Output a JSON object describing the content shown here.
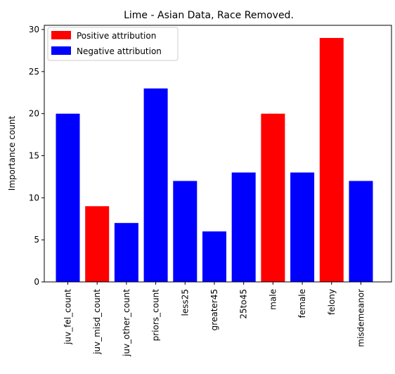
{
  "chart_data": {
    "type": "bar",
    "title": "Lime - Asian Data, Race Removed.",
    "xlabel": "",
    "ylabel": "Importance count",
    "ylim": [
      0,
      30.5
    ],
    "yticks": [
      0,
      5,
      10,
      15,
      20,
      25,
      30
    ],
    "grid": false,
    "legend_position": "top-left",
    "legend": [
      {
        "label": "Positive attribution",
        "color": "#ff0000"
      },
      {
        "label": "Negative attribution",
        "color": "#0000ff"
      }
    ],
    "categories": [
      "juv_fel_count",
      "juv_misd_count",
      "juv_other_count",
      "priors_count",
      "less25",
      "greater45",
      "25to45",
      "male",
      "female",
      "felony",
      "misdemeanor"
    ],
    "values": [
      20,
      9,
      7,
      23,
      12,
      6,
      13,
      20,
      13,
      29,
      12
    ],
    "attribution": [
      "negative",
      "positive",
      "negative",
      "negative",
      "negative",
      "negative",
      "negative",
      "positive",
      "negative",
      "positive",
      "negative"
    ]
  }
}
